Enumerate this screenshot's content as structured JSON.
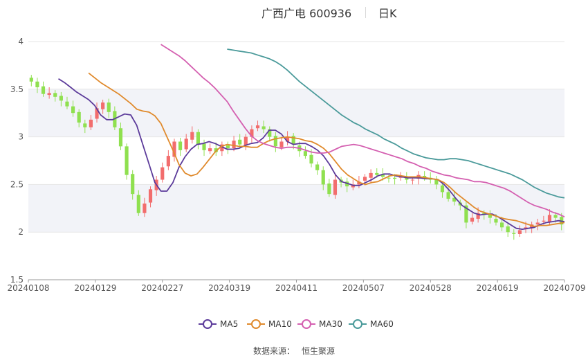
{
  "title": {
    "name": "广西广电 600936",
    "period": "日K"
  },
  "source": {
    "label": "数据来源：",
    "value": "恒生聚源"
  },
  "colors": {
    "up": "#f26d6d",
    "down": "#8fe04f",
    "ma5": "#5b3a9a",
    "ma10": "#e08a2c",
    "ma30": "#d45fb0",
    "ma60": "#4a9a9a",
    "band": "#f2f3f8",
    "grid": "#e6e6e6"
  },
  "chart_data": {
    "type": "candlestick",
    "ylim": [
      1.5,
      4
    ],
    "yticks": [
      "1.5",
      "2",
      "2.5",
      "3",
      "3.5",
      "4"
    ],
    "xticks": [
      "20240108",
      "20240129",
      "20240227",
      "20240319",
      "20240411",
      "20240507",
      "20240528",
      "20240619",
      "20240709"
    ],
    "grid": true,
    "legend_position": "bottom",
    "close": [
      3.58,
      3.52,
      3.45,
      3.46,
      3.42,
      3.38,
      3.32,
      3.25,
      3.15,
      3.1,
      3.18,
      3.3,
      3.36,
      3.26,
      3.1,
      2.9,
      2.6,
      2.4,
      2.2,
      2.3,
      2.45,
      2.55,
      2.68,
      2.8,
      2.95,
      2.86,
      2.98,
      3.05,
      2.92,
      2.86,
      2.88,
      2.84,
      2.92,
      2.88,
      2.96,
      2.92,
      3.0,
      3.08,
      3.12,
      3.08,
      3.0,
      2.9,
      2.95,
      3.0,
      2.92,
      2.85,
      2.8,
      2.72,
      2.65,
      2.5,
      2.4,
      2.55,
      2.52,
      2.48,
      2.5,
      2.53,
      2.58,
      2.62,
      2.6,
      2.58,
      2.57,
      2.56,
      2.58,
      2.55,
      2.55,
      2.6,
      2.57,
      2.55,
      2.5,
      2.42,
      2.35,
      2.32,
      2.28,
      2.1,
      2.15,
      2.2,
      2.18,
      2.15,
      2.1,
      2.05,
      2.0,
      1.98,
      2.02,
      2.05,
      2.08,
      2.1,
      2.12,
      2.18,
      2.15,
      2.08
    ],
    "series": [
      {
        "name": "MA5",
        "values": [
          3.61,
          3.57,
          3.52,
          3.47,
          3.43,
          3.39,
          3.33,
          3.23,
          3.18,
          3.18,
          3.21,
          3.24,
          3.23,
          3.12,
          2.92,
          2.72,
          2.52,
          2.43,
          2.43,
          2.52,
          2.68,
          2.79,
          2.87,
          2.92,
          2.93,
          2.95,
          2.93,
          2.9,
          2.87,
          2.87,
          2.88,
          2.91,
          2.93,
          2.94,
          2.99,
          3.07,
          3.07,
          3.03,
          2.95,
          2.92,
          2.93,
          2.93,
          2.9,
          2.86,
          2.8,
          2.71,
          2.6,
          2.53,
          2.51,
          2.49,
          2.49,
          2.52,
          2.55,
          2.59,
          2.61,
          2.61,
          2.59,
          2.58,
          2.57,
          2.57,
          2.57,
          2.56,
          2.56,
          2.55,
          2.5,
          2.43,
          2.35,
          2.28,
          2.24,
          2.2,
          2.18,
          2.19,
          2.19,
          2.16,
          2.12,
          2.08,
          2.04,
          2.03,
          2.04,
          2.05,
          2.08,
          2.1,
          2.11,
          2.12,
          2.11
        ]
      },
      {
        "name": "MA10",
        "values": [
          3.67,
          3.62,
          3.57,
          3.53,
          3.49,
          3.45,
          3.4,
          3.35,
          3.29,
          3.27,
          3.26,
          3.22,
          3.14,
          3.0,
          2.86,
          2.71,
          2.62,
          2.59,
          2.61,
          2.68,
          2.76,
          2.84,
          2.9,
          2.92,
          2.91,
          2.9,
          2.9,
          2.89,
          2.89,
          2.93,
          2.96,
          2.98,
          2.99,
          3.0,
          2.99,
          2.98,
          2.96,
          2.95,
          2.92,
          2.88,
          2.82,
          2.74,
          2.66,
          2.6,
          2.56,
          2.52,
          2.5,
          2.52,
          2.53,
          2.56,
          2.59,
          2.6,
          2.59,
          2.58,
          2.58,
          2.58,
          2.57,
          2.56,
          2.55,
          2.52,
          2.47,
          2.41,
          2.36,
          2.31,
          2.26,
          2.22,
          2.2,
          2.18,
          2.16,
          2.14,
          2.13,
          2.12,
          2.1,
          2.08,
          2.06,
          2.07,
          2.07,
          2.08,
          2.09,
          2.1
        ]
      },
      {
        "name": "MA30",
        "values": [
          3.97,
          3.93,
          3.89,
          3.85,
          3.8,
          3.74,
          3.68,
          3.62,
          3.57,
          3.51,
          3.44,
          3.37,
          3.27,
          3.18,
          3.09,
          3.01,
          2.96,
          2.93,
          2.91,
          2.89,
          2.88,
          2.89,
          2.89,
          2.88,
          2.86,
          2.84,
          2.83,
          2.83,
          2.84,
          2.87,
          2.9,
          2.91,
          2.92,
          2.91,
          2.89,
          2.87,
          2.85,
          2.83,
          2.81,
          2.79,
          2.77,
          2.74,
          2.72,
          2.69,
          2.67,
          2.64,
          2.62,
          2.6,
          2.59,
          2.57,
          2.56,
          2.55,
          2.53,
          2.53,
          2.52,
          2.5,
          2.48,
          2.46,
          2.43,
          2.39,
          2.35,
          2.31,
          2.28,
          2.26,
          2.24,
          2.21,
          2.19,
          2.16
        ]
      },
      {
        "name": "MA60",
        "values": [
          3.92,
          3.91,
          3.9,
          3.89,
          3.88,
          3.86,
          3.84,
          3.82,
          3.79,
          3.75,
          3.7,
          3.64,
          3.58,
          3.53,
          3.48,
          3.43,
          3.38,
          3.33,
          3.28,
          3.23,
          3.19,
          3.15,
          3.12,
          3.08,
          3.05,
          3.02,
          2.98,
          2.95,
          2.92,
          2.88,
          2.85,
          2.82,
          2.8,
          2.78,
          2.77,
          2.76,
          2.76,
          2.77,
          2.77,
          2.76,
          2.75,
          2.73,
          2.71,
          2.69,
          2.67,
          2.65,
          2.63,
          2.61,
          2.58,
          2.55,
          2.51,
          2.47,
          2.44,
          2.41,
          2.39,
          2.37,
          2.36
        ]
      }
    ]
  }
}
